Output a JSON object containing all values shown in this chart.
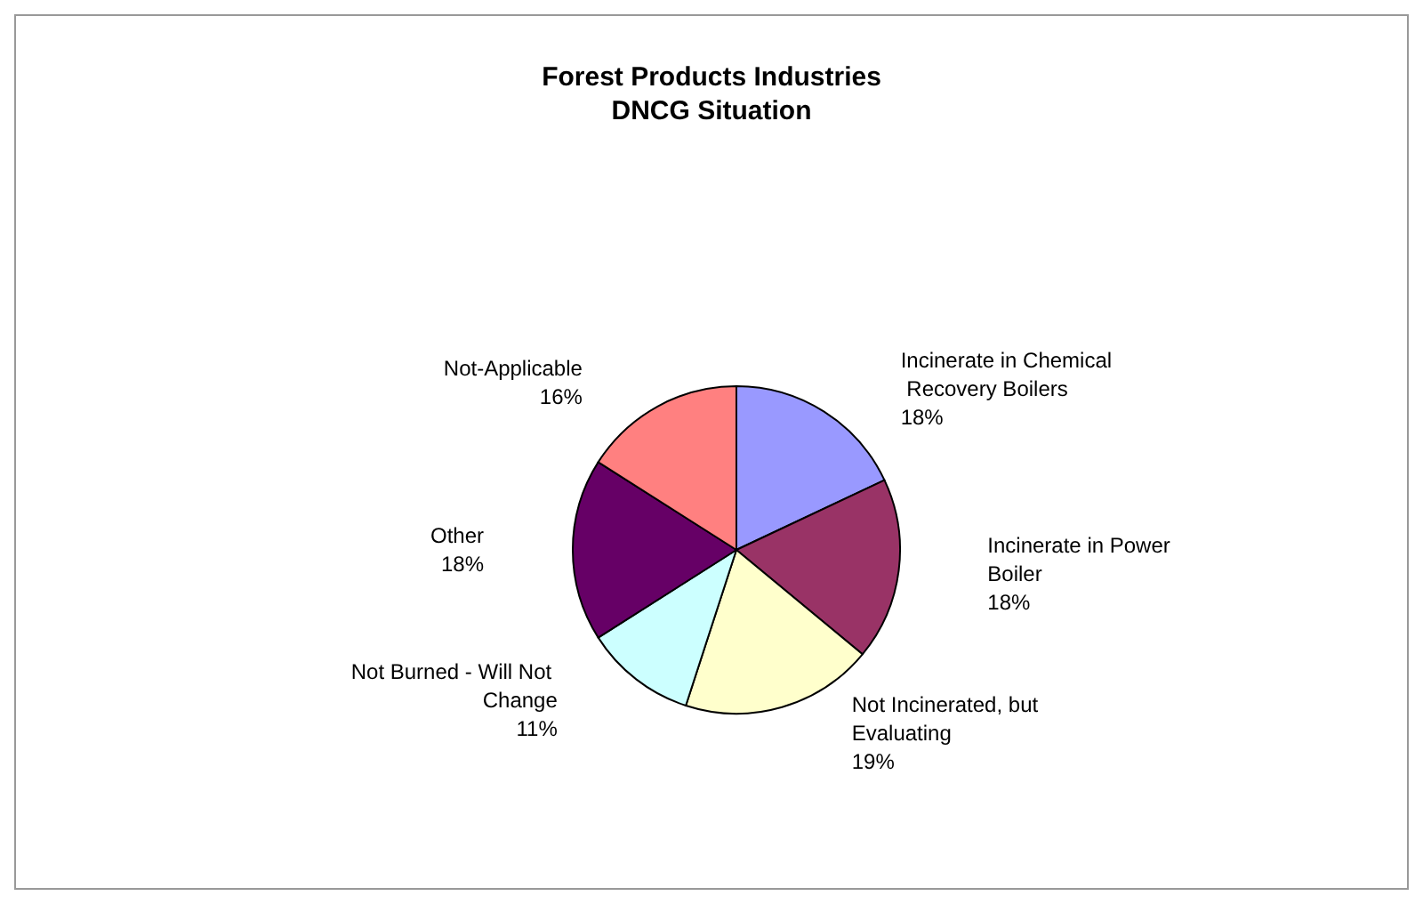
{
  "chart_data": {
    "type": "pie",
    "title": "Forest Products Industries",
    "subtitle": "DNCG Situation",
    "categories": [
      "Incinerate in Chemical Recovery Boilers",
      "Incinerate in Power Boiler",
      "Not Incinerated, but Evaluating",
      "Not Burned - Will Not Change",
      "Other",
      "Not-Applicable"
    ],
    "values": [
      18,
      18,
      19,
      11,
      18,
      16
    ],
    "value_labels": [
      "18%",
      "18%",
      "19%",
      "11%",
      "18%",
      "16%"
    ],
    "colors": [
      "#9999ff",
      "#993366",
      "#ffffcc",
      "#ccffff",
      "#660066",
      "#ff8080"
    ],
    "legend": false
  }
}
